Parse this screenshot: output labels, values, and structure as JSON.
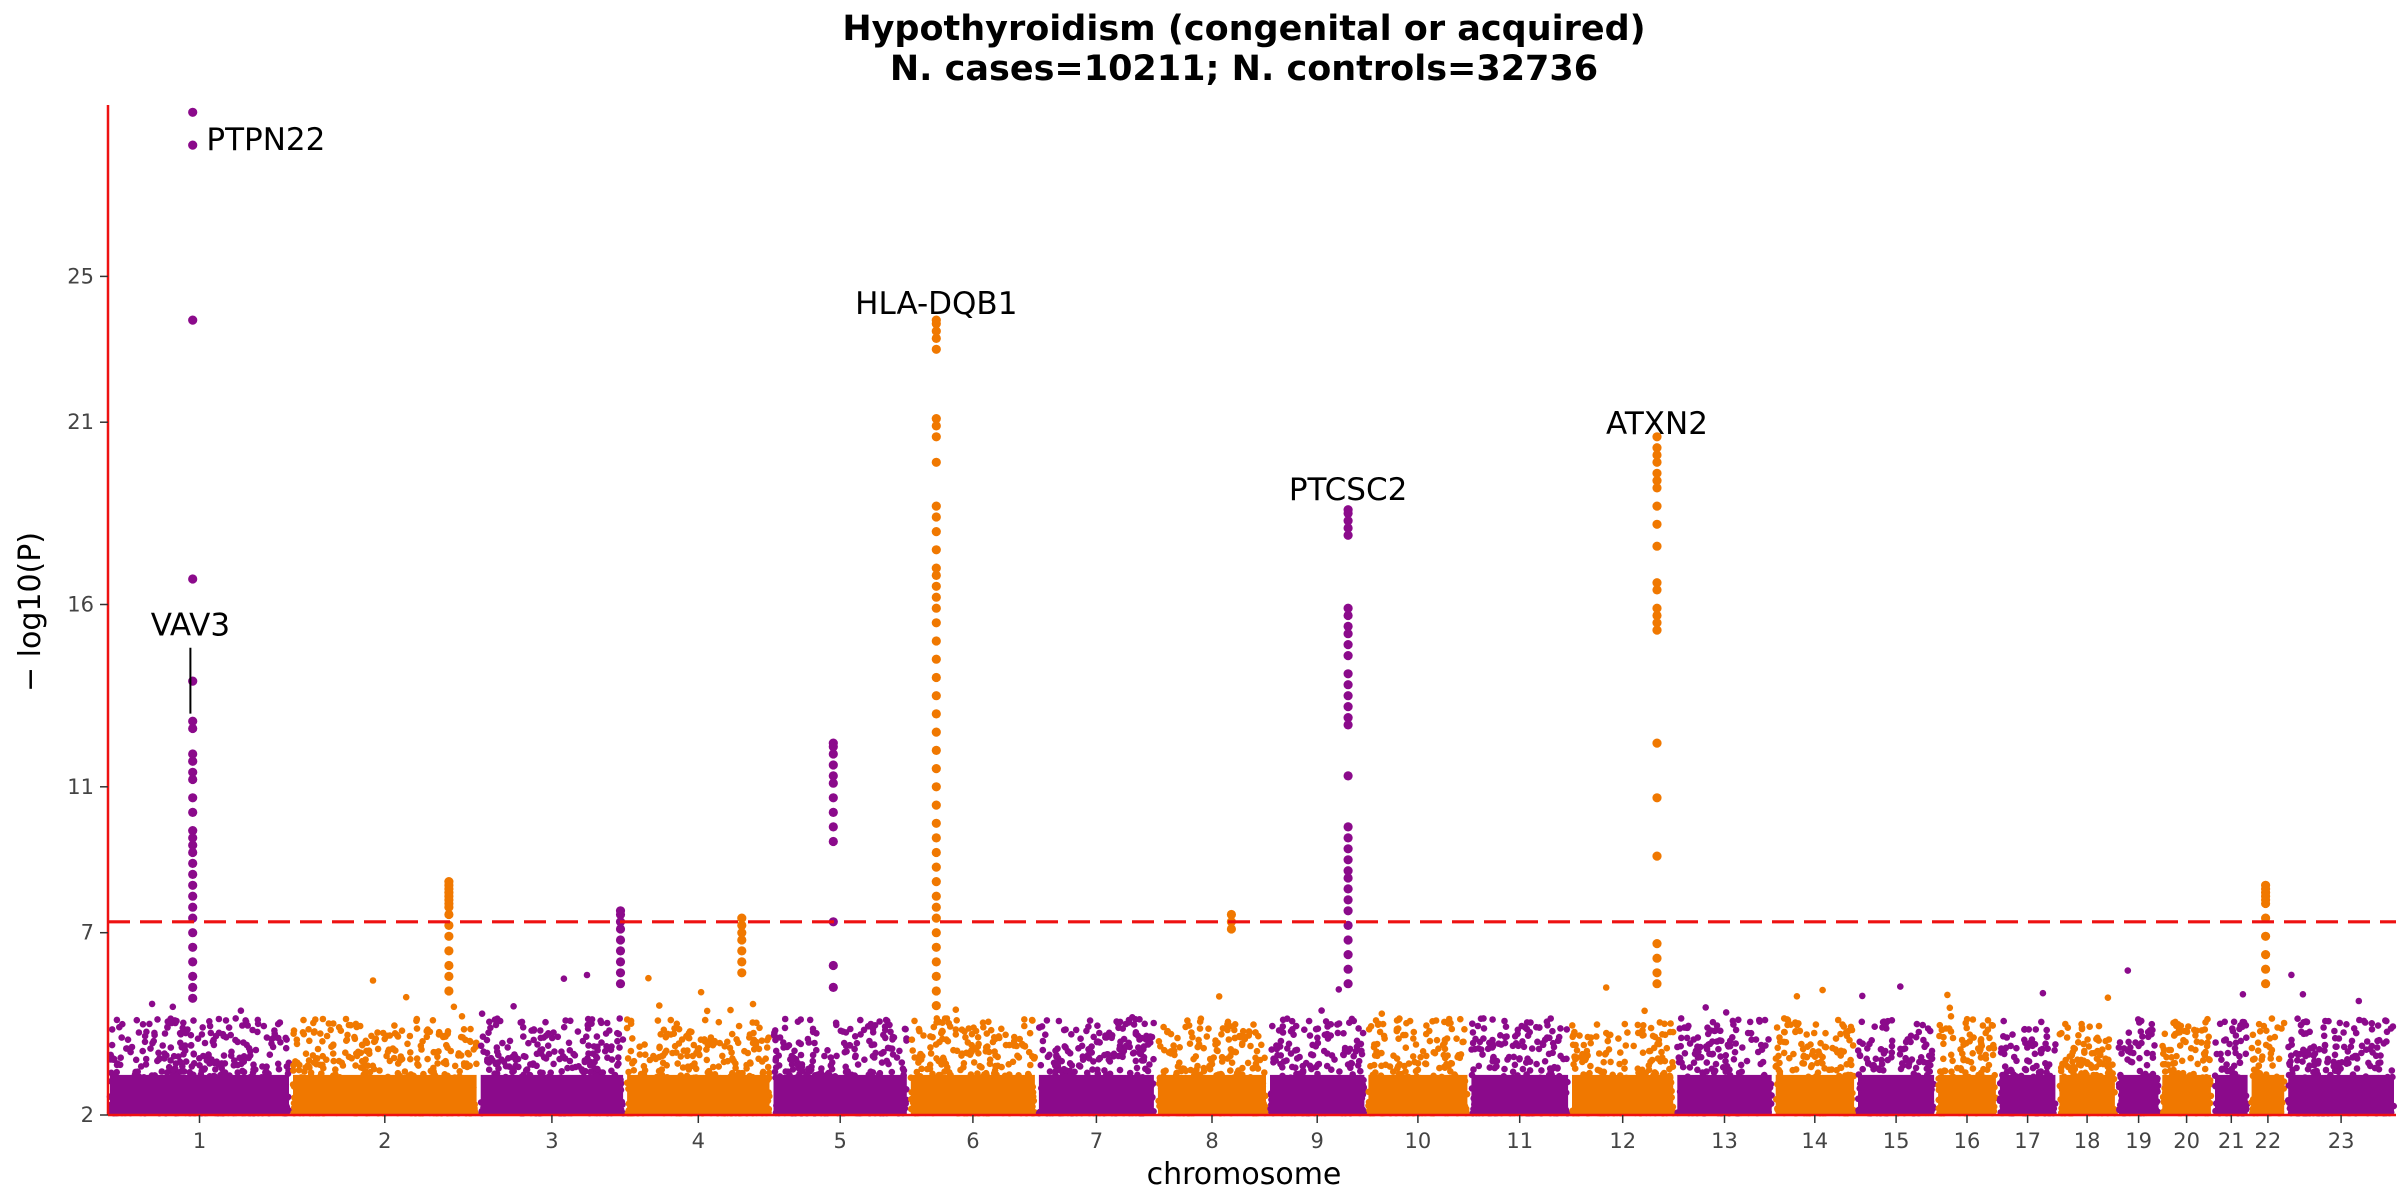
{
  "chart_data": {
    "type": "scatter",
    "subtype": "manhattan",
    "title": "Hypothyroidism (congenital or acquired)",
    "subtitle": "N. cases=10211; N. controls=32736",
    "xlabel": "chromosome",
    "ylabel": "− log10(P)",
    "ylim": [
      2,
      29.7
    ],
    "y_ticks": [
      2,
      7,
      11,
      16,
      21,
      25
    ],
    "significance_line": {
      "value": 7.3,
      "style": "dashed",
      "color": "#ee1111"
    },
    "colors": {
      "odd": "#8b0a8b",
      "even": "#f07800",
      "axis": "#ee1111"
    },
    "chromosomes": [
      {
        "label": "1",
        "start": 0.0,
        "end": 0.08
      },
      {
        "label": "2",
        "start": 0.08,
        "end": 0.162
      },
      {
        "label": "3",
        "start": 0.162,
        "end": 0.226
      },
      {
        "label": "4",
        "start": 0.226,
        "end": 0.29
      },
      {
        "label": "5",
        "start": 0.29,
        "end": 0.35
      },
      {
        "label": "6",
        "start": 0.35,
        "end": 0.406
      },
      {
        "label": "7",
        "start": 0.406,
        "end": 0.458
      },
      {
        "label": "8",
        "start": 0.458,
        "end": 0.507
      },
      {
        "label": "9",
        "start": 0.507,
        "end": 0.55
      },
      {
        "label": "10",
        "start": 0.55,
        "end": 0.595
      },
      {
        "label": "11",
        "start": 0.595,
        "end": 0.639
      },
      {
        "label": "12",
        "start": 0.639,
        "end": 0.685
      },
      {
        "label": "13",
        "start": 0.685,
        "end": 0.728
      },
      {
        "label": "14",
        "start": 0.728,
        "end": 0.764
      },
      {
        "label": "15",
        "start": 0.764,
        "end": 0.799
      },
      {
        "label": "16",
        "start": 0.799,
        "end": 0.826
      },
      {
        "label": "17",
        "start": 0.826,
        "end": 0.852
      },
      {
        "label": "18",
        "start": 0.852,
        "end": 0.878
      },
      {
        "label": "19",
        "start": 0.878,
        "end": 0.897
      },
      {
        "label": "20",
        "start": 0.897,
        "end": 0.92
      },
      {
        "label": "21",
        "start": 0.92,
        "end": 0.936
      },
      {
        "label": "22",
        "start": 0.936,
        "end": 0.952
      },
      {
        "label": "23",
        "start": 0.952,
        "end": 1.0
      }
    ],
    "peaks": [
      {
        "chr": "1",
        "pos": 0.037,
        "values": [
          29.5,
          28.6,
          23.8,
          16.7,
          13.9,
          12.8,
          12.6,
          11.9,
          11.7,
          11.4,
          11.2,
          10.7,
          10.3,
          9.8,
          9.6,
          9.4,
          9.2,
          8.9,
          8.6,
          8.3,
          8.0,
          7.7,
          7.4,
          7.0,
          6.6,
          6.2,
          5.8,
          5.5,
          5.2
        ]
      },
      {
        "chr": "2",
        "pos": 0.149,
        "values": [
          8.4,
          8.3,
          8.2,
          8.1,
          8.0,
          7.9,
          7.8,
          7.7,
          7.5,
          7.2,
          6.9,
          6.5,
          6.1,
          5.8,
          5.4
        ]
      },
      {
        "chr": "3",
        "pos": 0.224,
        "values": [
          7.6,
          7.5,
          7.3,
          7.1,
          6.8,
          6.5,
          6.2,
          5.9,
          5.6
        ]
      },
      {
        "chr": "4",
        "pos": 0.277,
        "values": [
          7.4,
          7.2,
          7.0,
          6.8,
          6.5,
          6.2,
          5.9
        ]
      },
      {
        "chr": "5",
        "pos": 0.317,
        "values": [
          12.2,
          12.1,
          11.9,
          11.6,
          11.3,
          11.1,
          10.7,
          10.3,
          9.9,
          9.5,
          7.3,
          6.1,
          5.5
        ]
      },
      {
        "chr": "6",
        "pos": 0.362,
        "values": [
          23.8,
          23.7,
          23.5,
          23.3,
          23.0,
          21.1,
          20.9,
          20.6,
          19.9,
          18.7,
          18.4,
          18.0,
          17.5,
          17.0,
          16.8,
          16.5,
          16.2,
          15.9,
          15.5,
          15.0,
          14.5,
          14.0,
          13.5,
          13.0,
          12.5,
          12.0,
          11.5,
          11.0,
          10.5,
          10.0,
          9.6,
          9.2,
          8.8,
          8.4,
          8.0,
          7.7,
          7.4,
          7.0,
          6.6,
          6.2,
          5.8,
          5.4,
          5.0
        ]
      },
      {
        "chr": "8",
        "pos": 0.491,
        "values": [
          7.5,
          7.3,
          7.1
        ]
      },
      {
        "chr": "9",
        "pos": 0.542,
        "values": [
          18.6,
          18.5,
          18.3,
          18.1,
          17.9,
          15.9,
          15.7,
          15.4,
          15.2,
          14.9,
          14.6,
          14.1,
          13.8,
          13.5,
          13.2,
          12.9,
          12.7,
          11.3,
          9.9,
          9.6,
          9.3,
          9.0,
          8.7,
          8.5,
          8.2,
          7.9,
          7.6,
          7.2,
          6.8,
          6.4,
          6.0,
          5.6
        ]
      },
      {
        "chr": "12",
        "pos": 0.677,
        "values": [
          20.6,
          20.3,
          20.1,
          19.9,
          19.6,
          19.4,
          19.2,
          18.7,
          18.2,
          17.6,
          16.6,
          16.4,
          15.9,
          15.7,
          15.5,
          15.3,
          12.2,
          10.7,
          9.1,
          6.7,
          6.3,
          5.9,
          5.6
        ]
      },
      {
        "chr": "22",
        "pos": 0.943,
        "values": [
          8.3,
          8.2,
          8.1,
          8.0,
          7.9,
          7.8,
          7.4,
          6.9,
          6.4,
          6.0,
          5.6
        ]
      }
    ],
    "annotations": [
      {
        "text": "PTPN22",
        "chr": "1",
        "pos": 0.037,
        "y": 28.6,
        "anchor": "start",
        "dx": 0.006,
        "dy": 0.2
      },
      {
        "text": "HLA-DQB1",
        "chr": "6",
        "pos": 0.362,
        "y": 23.8,
        "anchor": "middle",
        "dx": 0,
        "dy": 0.5
      },
      {
        "text": "PTCSC2",
        "chr": "9",
        "pos": 0.542,
        "y": 18.6,
        "anchor": "middle",
        "dx": 0,
        "dy": 0.6
      },
      {
        "text": "ATXN2",
        "chr": "12",
        "pos": 0.677,
        "y": 20.6,
        "anchor": "middle",
        "dx": 0,
        "dy": 0.4
      },
      {
        "text": "VAV3",
        "chr": "1",
        "pos": 0.036,
        "y": 12.9,
        "anchor": "middle",
        "dx": 0,
        "dy": 2.3,
        "leader": true
      }
    ]
  }
}
